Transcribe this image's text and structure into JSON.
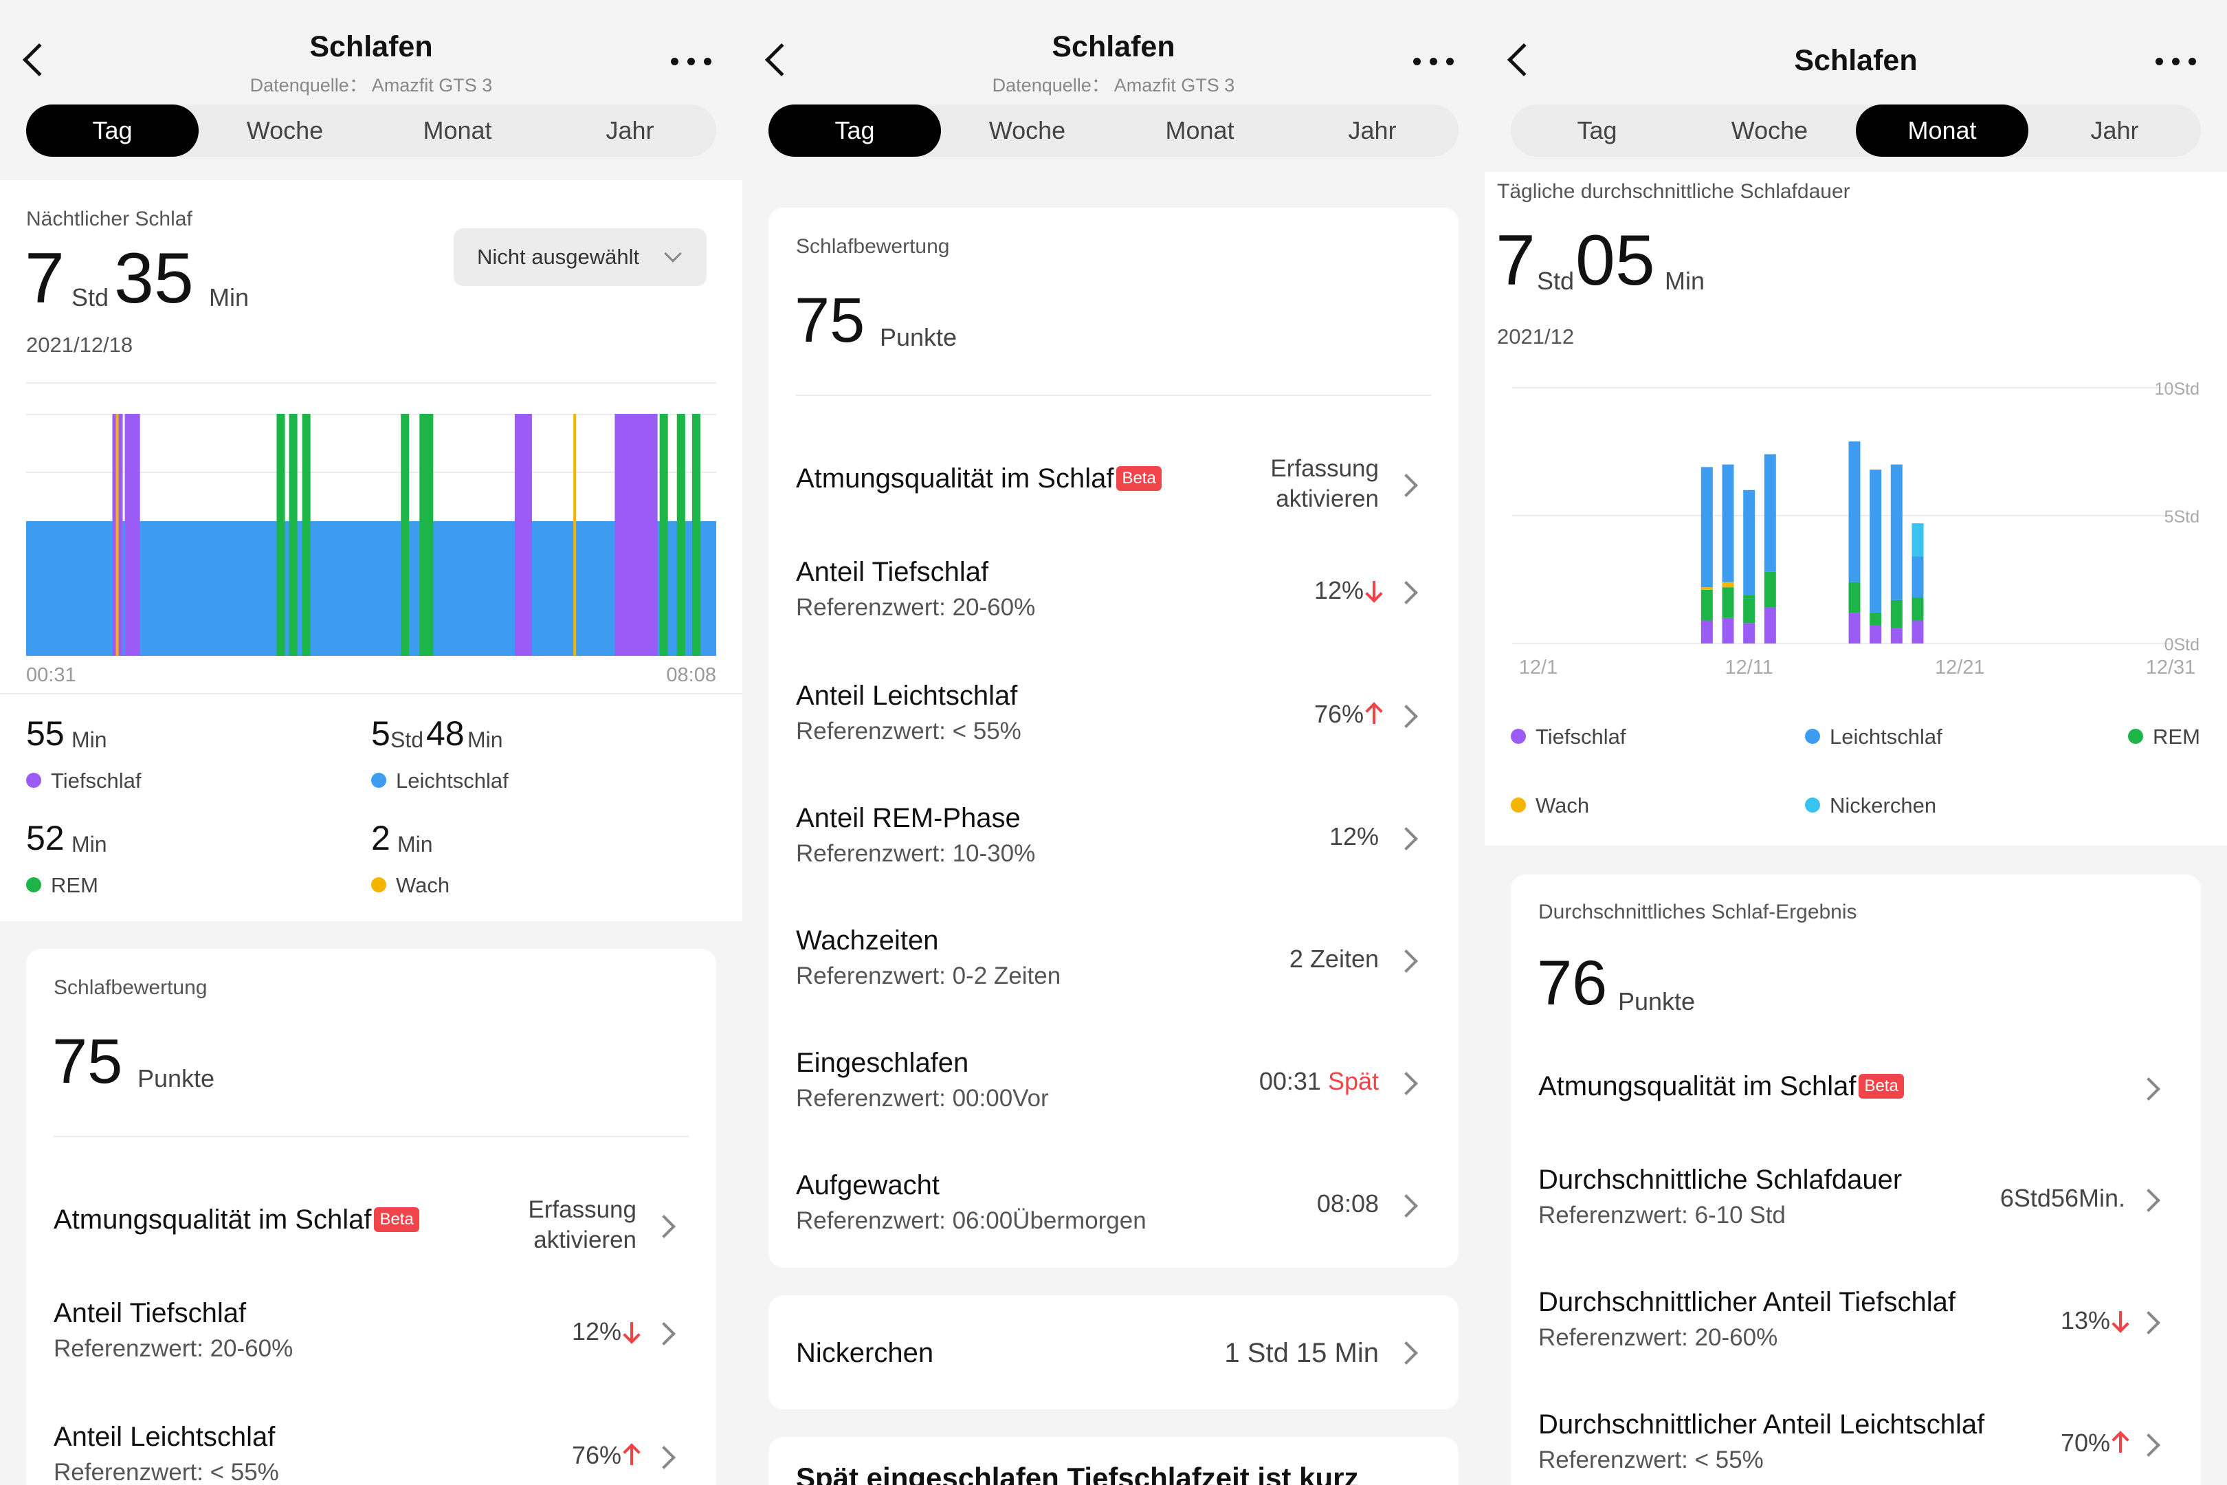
{
  "app": {
    "title": "Schlafen",
    "source": "Datenquelle： Amazfit GTS 3"
  },
  "tabs": [
    "Tag",
    "Woche",
    "Monat",
    "Jahr"
  ],
  "colors": {
    "deep": "#9B5CF6",
    "light": "#3D9CF0",
    "rem": "#1DB548",
    "awake": "#F5B400",
    "nap": "#38C3F0",
    "accent": "#F0444A"
  },
  "day": {
    "night_label": "Nächtlicher Schlaf",
    "hours": "7",
    "hours_unit": "Std",
    "minutes": "35",
    "minutes_unit": "Min",
    "date": "2021/12/18",
    "dropdown": "Nicht ausgewählt",
    "chart_start": "00:31",
    "chart_end": "08:08",
    "stats": [
      {
        "value": "55",
        "unit": "Min",
        "label": "Tiefschlaf"
      },
      {
        "value": "5",
        "unit": "Std",
        "value2": "48",
        "unit2": "Min",
        "label": "Leichtschlaf"
      },
      {
        "value": "52",
        "unit": "Min",
        "label": "REM"
      },
      {
        "value": "2",
        "unit": "Min",
        "label": "Wach"
      }
    ]
  },
  "score": {
    "label": "Schlafbewertung",
    "value": "75",
    "unit": "Punkte"
  },
  "rows": [
    {
      "title": "Atmungsqualität im Schlaf",
      "badge": "Beta",
      "value_line1": "Erfassung",
      "value_line2": "aktivieren"
    },
    {
      "title": "Anteil Tiefschlaf",
      "sub": "Referenzwert: 20-60%",
      "value": "12%"
    },
    {
      "title": "Anteil Leichtschlaf",
      "sub": "Referenzwert: < 55%",
      "value": "76%"
    },
    {
      "title": "Anteil REM-Phase",
      "sub": "Referenzwert: 10-30%",
      "value": "12%"
    },
    {
      "title": "Wachzeiten",
      "sub": "Referenzwert: 0-2 Zeiten",
      "value": "2 Zeiten"
    },
    {
      "title": "Eingeschlafen",
      "sub": "Referenzwert: 00:00Vor",
      "value": "00:31",
      "value_flag": "Spät"
    },
    {
      "title": "Aufgewacht",
      "sub": "Referenzwert: 06:00Übermorgen",
      "value": "08:08"
    }
  ],
  "nap": {
    "title": "Nickerchen",
    "value": "1 Std 15 Min"
  },
  "summary_partial": "Spät eingeschlafen Tiefschlafzeit ist kurz",
  "month": {
    "avg_label": "Tägliche durchschnittliche Schlafdauer",
    "hours": "7",
    "hours_unit": "Std",
    "minutes": "05",
    "minutes_unit": "Min",
    "date": "2021/12",
    "legend": [
      "Tiefschlaf",
      "Leichtschlaf",
      "REM",
      "Wach",
      "Nickerchen"
    ],
    "score_label": "Durchschnittliches Schlaf-Ergebnis",
    "score_value": "76",
    "score_unit": "Punkte",
    "rows": [
      {
        "title": "Atmungsqualität im Schlaf",
        "badge": "Beta"
      },
      {
        "title": "Durchschnittliche Schlafdauer",
        "sub": "Referenzwert: 6-10 Std",
        "value": "6Std56Min."
      },
      {
        "title": "Durchschnittlicher Anteil Tiefschlaf",
        "sub": "Referenzwert: 20-60%",
        "value": "13%"
      },
      {
        "title": "Durchschnittlicher Anteil Leichtschlaf",
        "sub": "Referenzwert: < 55%",
        "value": "70%"
      }
    ]
  },
  "chart_data": [
    {
      "type": "bar",
      "title": "Nächtlicher Schlaf",
      "x_range": [
        "00:31",
        "08:08"
      ],
      "segments": [
        {
          "stage": "light",
          "from": 0.0,
          "to": 1.0
        },
        {
          "stage": "deep",
          "from": 0.125,
          "to": 0.14
        },
        {
          "stage": "awake",
          "from": 0.13,
          "to": 0.134
        },
        {
          "stage": "deep",
          "from": 0.143,
          "to": 0.165
        },
        {
          "stage": "rem",
          "from": 0.363,
          "to": 0.375
        },
        {
          "stage": "rem",
          "from": 0.381,
          "to": 0.393
        },
        {
          "stage": "rem",
          "from": 0.4,
          "to": 0.412
        },
        {
          "stage": "rem",
          "from": 0.543,
          "to": 0.555
        },
        {
          "stage": "rem",
          "from": 0.57,
          "to": 0.59
        },
        {
          "stage": "deep",
          "from": 0.708,
          "to": 0.733
        },
        {
          "stage": "awake",
          "from": 0.793,
          "to": 0.797
        },
        {
          "stage": "deep",
          "from": 0.853,
          "to": 0.915
        },
        {
          "stage": "rem",
          "from": 0.918,
          "to": 0.93
        },
        {
          "stage": "rem",
          "from": 0.943,
          "to": 0.955
        },
        {
          "stage": "rem",
          "from": 0.965,
          "to": 0.977
        }
      ]
    },
    {
      "type": "bar",
      "title": "Tägliche durchschnittliche Schlafdauer",
      "categories": [
        "12/1",
        "12/11",
        "12/21",
        "12/31"
      ],
      "ylim": [
        0,
        10
      ],
      "y_ticks": [
        "0Std",
        "5Std",
        "10Std"
      ],
      "x_day_range": [
        1,
        31
      ],
      "series_order": [
        "deep",
        "rem",
        "awake",
        "light",
        "nap"
      ],
      "bars": [
        {
          "day": 9,
          "deep": 0.9,
          "rem": 1.2,
          "awake": 0.1,
          "light": 4.7,
          "nap": 0
        },
        {
          "day": 10,
          "deep": 1.0,
          "rem": 1.2,
          "awake": 0.2,
          "light": 4.6,
          "nap": 0
        },
        {
          "day": 11,
          "deep": 0.8,
          "rem": 1.1,
          "awake": 0,
          "light": 4.1,
          "nap": 0
        },
        {
          "day": 12,
          "deep": 1.4,
          "rem": 1.4,
          "awake": 0,
          "light": 4.6,
          "nap": 0
        },
        {
          "day": 16,
          "deep": 1.2,
          "rem": 1.2,
          "awake": 0,
          "light": 5.5,
          "nap": 0
        },
        {
          "day": 17,
          "deep": 0.7,
          "rem": 0.5,
          "awake": 0,
          "light": 5.6,
          "nap": 0
        },
        {
          "day": 18,
          "deep": 0.6,
          "rem": 1.1,
          "awake": 0,
          "light": 5.3,
          "nap": 0
        },
        {
          "day": 19,
          "deep": 0.9,
          "rem": 0.9,
          "awake": 0,
          "light": 1.6,
          "nap": 1.3
        }
      ]
    }
  ]
}
